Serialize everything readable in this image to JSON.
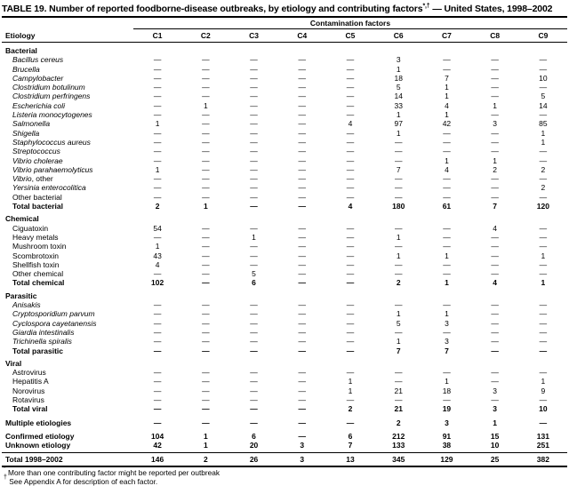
{
  "title": {
    "main": "TABLE 19. Number of reported foodborne-disease outbreaks, by etiology and contributing factors",
    "sup": "*,†",
    "tail": " — United States, 1998–2002"
  },
  "header": {
    "group_label": "Contamination factors",
    "row_label": "Etiology",
    "columns": [
      "C1",
      "C2",
      "C3",
      "C4",
      "C5",
      "C6",
      "C7",
      "C8",
      "C9"
    ]
  },
  "table": {
    "sections": [
      {
        "name": "Bacterial",
        "rows": [
          {
            "italic": "Bacillus cereus",
            "roman": "",
            "bold": false,
            "values": [
              "—",
              "—",
              "—",
              "—",
              "—",
              "3",
              "—",
              "—",
              "—"
            ]
          },
          {
            "italic": "Brucella",
            "roman": "",
            "bold": false,
            "values": [
              "—",
              "—",
              "—",
              "—",
              "—",
              "1",
              "—",
              "—",
              "—"
            ]
          },
          {
            "italic": "Campylobacter",
            "roman": "",
            "bold": false,
            "values": [
              "—",
              "—",
              "—",
              "—",
              "—",
              "18",
              "7",
              "—",
              "10"
            ]
          },
          {
            "italic": "Clostridium botulinum",
            "roman": "",
            "bold": false,
            "values": [
              "—",
              "—",
              "—",
              "—",
              "—",
              "5",
              "1",
              "—",
              "—"
            ]
          },
          {
            "italic": "Clostridium perfringens",
            "roman": "",
            "bold": false,
            "values": [
              "—",
              "—",
              "—",
              "—",
              "—",
              "14",
              "1",
              "—",
              "5"
            ]
          },
          {
            "italic": "Escherichia coli",
            "roman": "",
            "bold": false,
            "values": [
              "—",
              "1",
              "—",
              "—",
              "—",
              "33",
              "4",
              "1",
              "14"
            ]
          },
          {
            "italic": "Listeria monocytogenes",
            "roman": "",
            "bold": false,
            "values": [
              "—",
              "—",
              "—",
              "—",
              "—",
              "1",
              "1",
              "—",
              "—"
            ]
          },
          {
            "italic": "Salmonella",
            "roman": "",
            "bold": false,
            "values": [
              "1",
              "—",
              "—",
              "—",
              "4",
              "97",
              "42",
              "3",
              "85"
            ]
          },
          {
            "italic": "Shigella",
            "roman": "",
            "bold": false,
            "values": [
              "—",
              "—",
              "—",
              "—",
              "—",
              "1",
              "—",
              "—",
              "1"
            ]
          },
          {
            "italic": "Staphylococcus aureus",
            "roman": "",
            "bold": false,
            "values": [
              "—",
              "—",
              "—",
              "—",
              "—",
              "—",
              "—",
              "—",
              "1"
            ]
          },
          {
            "italic": "Streptococcus",
            "roman": "",
            "bold": false,
            "values": [
              "—",
              "—",
              "—",
              "—",
              "—",
              "—",
              "—",
              "—",
              "—"
            ]
          },
          {
            "italic": "Vibrio cholerae",
            "roman": "",
            "bold": false,
            "values": [
              "—",
              "—",
              "—",
              "—",
              "—",
              "—",
              "1",
              "1",
              "—"
            ]
          },
          {
            "italic": "Vibrio parahaemolyticus",
            "roman": "",
            "bold": false,
            "values": [
              "1",
              "—",
              "—",
              "—",
              "—",
              "7",
              "4",
              "2",
              "2"
            ]
          },
          {
            "italic": "Vibrio",
            "roman": ", other",
            "bold": false,
            "values": [
              "—",
              "—",
              "—",
              "—",
              "—",
              "—",
              "—",
              "—",
              "—"
            ]
          },
          {
            "italic": "Yersinia enterocolitica",
            "roman": "",
            "bold": false,
            "values": [
              "—",
              "—",
              "—",
              "—",
              "—",
              "—",
              "—",
              "—",
              "2"
            ]
          },
          {
            "italic": "",
            "roman": "Other bacterial",
            "bold": false,
            "values": [
              "—",
              "—",
              "—",
              "—",
              "—",
              "—",
              "—",
              "—",
              "—"
            ]
          },
          {
            "italic": "",
            "roman": "Total bacterial",
            "bold": true,
            "values": [
              "2",
              "1",
              "—",
              "—",
              "4",
              "180",
              "61",
              "7",
              "120"
            ]
          }
        ]
      },
      {
        "name": "Chemical",
        "rows": [
          {
            "italic": "",
            "roman": "Ciguatoxin",
            "bold": false,
            "values": [
              "54",
              "—",
              "—",
              "—",
              "—",
              "—",
              "—",
              "4",
              "—"
            ]
          },
          {
            "italic": "",
            "roman": "Heavy metals",
            "bold": false,
            "values": [
              "—",
              "—",
              "1",
              "—",
              "—",
              "1",
              "—",
              "—",
              "—"
            ]
          },
          {
            "italic": "",
            "roman": "Mushroom toxin",
            "bold": false,
            "values": [
              "1",
              "—",
              "—",
              "—",
              "—",
              "—",
              "—",
              "—",
              "—"
            ]
          },
          {
            "italic": "",
            "roman": "Scombrotoxin",
            "bold": false,
            "values": [
              "43",
              "—",
              "—",
              "—",
              "—",
              "1",
              "1",
              "—",
              "1"
            ]
          },
          {
            "italic": "",
            "roman": "Shellfish toxin",
            "bold": false,
            "values": [
              "4",
              "—",
              "—",
              "—",
              "—",
              "—",
              "—",
              "—",
              "—"
            ]
          },
          {
            "italic": "",
            "roman": "Other chemical",
            "bold": false,
            "values": [
              "—",
              "—",
              "5",
              "—",
              "—",
              "—",
              "—",
              "—",
              "—"
            ]
          },
          {
            "italic": "",
            "roman": "Total chemical",
            "bold": true,
            "values": [
              "102",
              "—",
              "6",
              "—",
              "—",
              "2",
              "1",
              "4",
              "1"
            ]
          }
        ]
      },
      {
        "name": "Parasitic",
        "rows": [
          {
            "italic": "Anisakis",
            "roman": "",
            "bold": false,
            "values": [
              "—",
              "—",
              "—",
              "—",
              "—",
              "—",
              "—",
              "—",
              "—"
            ]
          },
          {
            "italic": "Cryptosporidium parvum",
            "roman": "",
            "bold": false,
            "values": [
              "—",
              "—",
              "—",
              "—",
              "—",
              "1",
              "1",
              "—",
              "—"
            ]
          },
          {
            "italic": "Cyclospora cayetanensis",
            "roman": "",
            "bold": false,
            "values": [
              "—",
              "—",
              "—",
              "—",
              "—",
              "5",
              "3",
              "—",
              "—"
            ]
          },
          {
            "italic": "Giardia intestinalis",
            "roman": "",
            "bold": false,
            "values": [
              "—",
              "—",
              "—",
              "—",
              "—",
              "—",
              "—",
              "—",
              "—"
            ]
          },
          {
            "italic": "Trichinella spiralis",
            "roman": "",
            "bold": false,
            "values": [
              "—",
              "—",
              "—",
              "—",
              "—",
              "1",
              "3",
              "—",
              "—"
            ]
          },
          {
            "italic": "",
            "roman": "Total parasitic",
            "bold": true,
            "values": [
              "—",
              "—",
              "—",
              "—",
              "—",
              "7",
              "7",
              "—",
              "—"
            ]
          }
        ]
      },
      {
        "name": "Viral",
        "rows": [
          {
            "italic": "",
            "roman": "Astrovirus",
            "bold": false,
            "values": [
              "—",
              "—",
              "—",
              "—",
              "—",
              "—",
              "—",
              "—",
              "—"
            ]
          },
          {
            "italic": "",
            "roman": "Hepatitis A",
            "bold": false,
            "values": [
              "—",
              "—",
              "—",
              "—",
              "1",
              "—",
              "1",
              "—",
              "1"
            ]
          },
          {
            "italic": "",
            "roman": "Norovirus",
            "bold": false,
            "values": [
              "—",
              "—",
              "—",
              "—",
              "1",
              "21",
              "18",
              "3",
              "9"
            ]
          },
          {
            "italic": "",
            "roman": "Rotavirus",
            "bold": false,
            "values": [
              "—",
              "—",
              "—",
              "—",
              "—",
              "—",
              "—",
              "—",
              "—"
            ]
          },
          {
            "italic": "",
            "roman": "Total viral",
            "bold": true,
            "values": [
              "—",
              "—",
              "—",
              "—",
              "2",
              "21",
              "19",
              "3",
              "10"
            ]
          }
        ]
      }
    ],
    "multiple_etiologies": {
      "label": "Multiple etiologies",
      "values": [
        "—",
        "—",
        "—",
        "—",
        "—",
        "2",
        "3",
        "1",
        "—"
      ]
    },
    "summary_rows": [
      {
        "label": "Confirmed etiology",
        "values": [
          "104",
          "1",
          "6",
          "—",
          "6",
          "212",
          "91",
          "15",
          "131"
        ]
      },
      {
        "label": "Unknown etiology",
        "values": [
          "42",
          "1",
          "20",
          "3",
          "7",
          "133",
          "38",
          "10",
          "251"
        ]
      }
    ],
    "total_row": {
      "label": "Total 1998–2002",
      "values": [
        "146",
        "2",
        "26",
        "3",
        "13",
        "345",
        "129",
        "25",
        "382"
      ]
    }
  },
  "footnotes": [
    {
      "marker": "*",
      "text": "More than one contributing factor might be reported per outbreak"
    },
    {
      "marker": "†",
      "text": "See Appendix A for description of each factor."
    }
  ]
}
